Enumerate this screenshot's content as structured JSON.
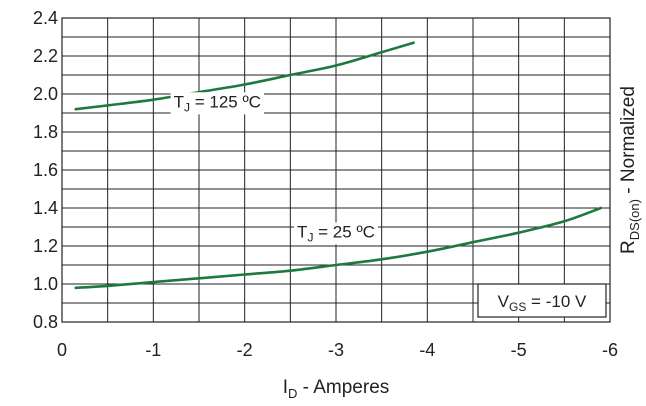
{
  "chart_data": {
    "type": "line",
    "xlabel": {
      "main": "I",
      "sub": "D",
      "rest": " - Amperes"
    },
    "ylabel": {
      "main": "R",
      "sub": "DS(on)",
      "rest": " - Normalized"
    },
    "xlim": [
      0,
      -6
    ],
    "ylim": [
      0.8,
      2.4
    ],
    "x_ticks": [
      0,
      -1,
      -2,
      -3,
      -4,
      -5,
      -6
    ],
    "x_tick_labels": [
      "0",
      "-1",
      "-2",
      "-3",
      "-4",
      "-5",
      "-6"
    ],
    "y_ticks": [
      0.8,
      1.0,
      1.2,
      1.4,
      1.6,
      1.8,
      2.0,
      2.2,
      2.4
    ],
    "y_tick_labels": [
      "0.8",
      "1.0",
      "1.2",
      "1.4",
      "1.6",
      "1.8",
      "2.0",
      "2.2",
      "2.4"
    ],
    "x_grid_step": 0.5,
    "y_grid_step": 0.1,
    "grid": true,
    "series": [
      {
        "label": {
          "main": "T",
          "sub": "J",
          "rest": " = 125 ºC"
        },
        "label_at": [
          -1.7,
          1.93
        ],
        "color": "#1e7a3c",
        "x": [
          -0.15,
          -0.5,
          -1.0,
          -1.5,
          -2.0,
          -2.5,
          -3.0,
          -3.5,
          -3.85
        ],
        "y": [
          1.92,
          1.94,
          1.97,
          2.01,
          2.05,
          2.1,
          2.15,
          2.22,
          2.27
        ]
      },
      {
        "label": {
          "main": "T",
          "sub": "J",
          "rest": " = 25 ºC"
        },
        "label_at": [
          -3.0,
          1.245
        ],
        "color": "#1e7a3c",
        "x": [
          -0.15,
          -0.5,
          -1.0,
          -1.5,
          -2.0,
          -2.5,
          -3.0,
          -3.5,
          -4.0,
          -4.5,
          -5.0,
          -5.5,
          -5.9
        ],
        "y": [
          0.98,
          0.99,
          1.01,
          1.03,
          1.05,
          1.07,
          1.1,
          1.13,
          1.17,
          1.22,
          1.27,
          1.33,
          1.4
        ]
      }
    ],
    "annotations": [
      {
        "main": "V",
        "sub": "GS",
        "rest": " = -10 V",
        "box": true
      }
    ]
  }
}
